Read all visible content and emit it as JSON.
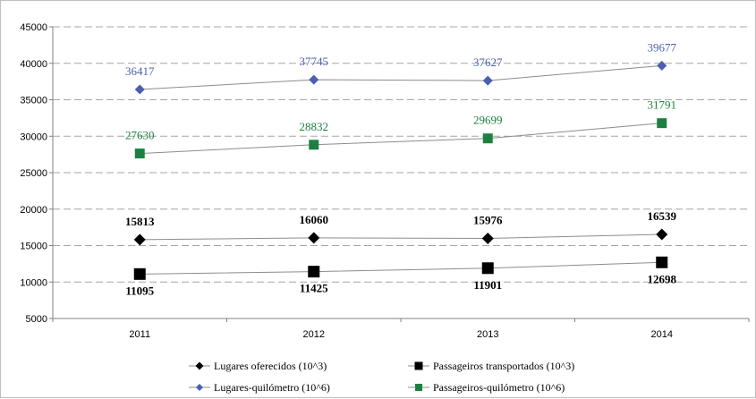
{
  "chart_data": {
    "type": "line",
    "categories": [
      "2011",
      "2012",
      "2013",
      "2014"
    ],
    "ylim": [
      5000,
      45000
    ],
    "yticks": [
      5000,
      10000,
      15000,
      20000,
      25000,
      30000,
      35000,
      40000,
      45000
    ],
    "grid": true,
    "legend_position": "bottom",
    "series": [
      {
        "name": "Lugares oferecidos (10^3)",
        "values": [
          15813,
          16060,
          15976,
          16539
        ],
        "marker": "diamond",
        "color": "#000000",
        "label_color": "#000000",
        "label_position": "above",
        "label_bold": true
      },
      {
        "name": "Passageiros transportados (10^3)",
        "values": [
          11095,
          11425,
          11901,
          12698
        ],
        "marker": "square",
        "color": "#000000",
        "label_color": "#000000",
        "label_position": "below",
        "label_bold": true
      },
      {
        "name": "Lugares-quilómetro (10^6)",
        "values": [
          36417,
          37745,
          37627,
          39677
        ],
        "marker": "diamond",
        "color": "#4a5fae",
        "label_color": "#4a5fae",
        "label_position": "above",
        "label_bold": false
      },
      {
        "name": "Passageiros-quilómetro (10^6)",
        "values": [
          27630,
          28832,
          29699,
          31791
        ],
        "marker": "square",
        "color": "#1e8040",
        "label_color": "#1e8040",
        "label_position": "above",
        "label_bold": false
      }
    ],
    "line_color": "#8c8c8c"
  }
}
